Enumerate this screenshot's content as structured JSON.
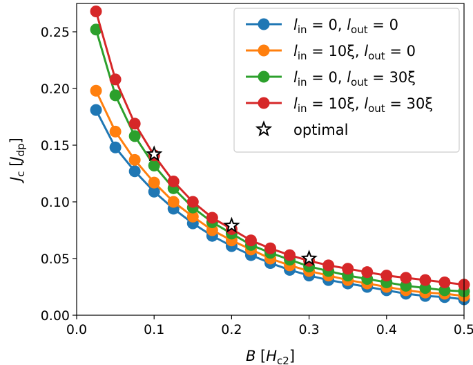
{
  "chart_data": {
    "type": "line",
    "xlabel_var": "B",
    "xlabel_unit": "H",
    "xlabel_unit_sub": "c2",
    "ylabel_var": "J",
    "ylabel_var_sub": "c",
    "ylabel_unit": "J",
    "ylabel_unit_sub": "dp",
    "xlim": [
      0.0,
      0.5
    ],
    "ylim": [
      0.0,
      0.275
    ],
    "xticks": [
      "0.0",
      "0.1",
      "0.2",
      "0.3",
      "0.4",
      "0.5"
    ],
    "yticks": [
      "0.00",
      "0.05",
      "0.10",
      "0.15",
      "0.20",
      "0.25"
    ],
    "grid": false,
    "legend_position": "top-right",
    "x": [
      0.025,
      0.05,
      0.075,
      0.1,
      0.125,
      0.15,
      0.175,
      0.2,
      0.225,
      0.25,
      0.275,
      0.3,
      0.325,
      0.35,
      0.375,
      0.4,
      0.425,
      0.45,
      0.475,
      0.5
    ],
    "series": [
      {
        "label_parts": {
          "a": "0",
          "b": "0"
        },
        "color": "#1f77b4",
        "values": [
          0.181,
          0.148,
          0.127,
          0.109,
          0.094,
          0.081,
          0.07,
          0.061,
          0.053,
          0.046,
          0.04,
          0.035,
          0.031,
          0.028,
          0.025,
          0.022,
          0.019,
          0.017,
          0.016,
          0.014
        ]
      },
      {
        "label_parts": {
          "a": "10ξ",
          "b": "0"
        },
        "color": "#ff7f0e",
        "values": [
          0.198,
          0.162,
          0.137,
          0.117,
          0.1,
          0.087,
          0.075,
          0.066,
          0.058,
          0.05,
          0.044,
          0.039,
          0.035,
          0.031,
          0.028,
          0.025,
          0.022,
          0.02,
          0.019,
          0.017
        ]
      },
      {
        "label_parts": {
          "a": "0",
          "b": "30ξ"
        },
        "color": "#2ca02c",
        "values": [
          0.252,
          0.194,
          0.158,
          0.132,
          0.112,
          0.095,
          0.082,
          0.072,
          0.062,
          0.055,
          0.049,
          0.043,
          0.039,
          0.035,
          0.032,
          0.029,
          0.026,
          0.024,
          0.022,
          0.021
        ]
      },
      {
        "label_parts": {
          "a": "10ξ",
          "b": "30ξ"
        },
        "color": "#d62728",
        "values": [
          0.268,
          0.208,
          0.169,
          0.141,
          0.118,
          0.1,
          0.086,
          0.076,
          0.066,
          0.059,
          0.053,
          0.048,
          0.044,
          0.041,
          0.038,
          0.035,
          0.033,
          0.031,
          0.029,
          0.027
        ]
      }
    ],
    "optimal": {
      "label": "optimal",
      "points": [
        {
          "x": 0.1,
          "y": 0.142
        },
        {
          "x": 0.2,
          "y": 0.079
        },
        {
          "x": 0.3,
          "y": 0.05
        }
      ]
    },
    "label_tokens": {
      "l": "l",
      "in": "in",
      "out": "out",
      "eq": " = ",
      "sep": ", "
    }
  }
}
